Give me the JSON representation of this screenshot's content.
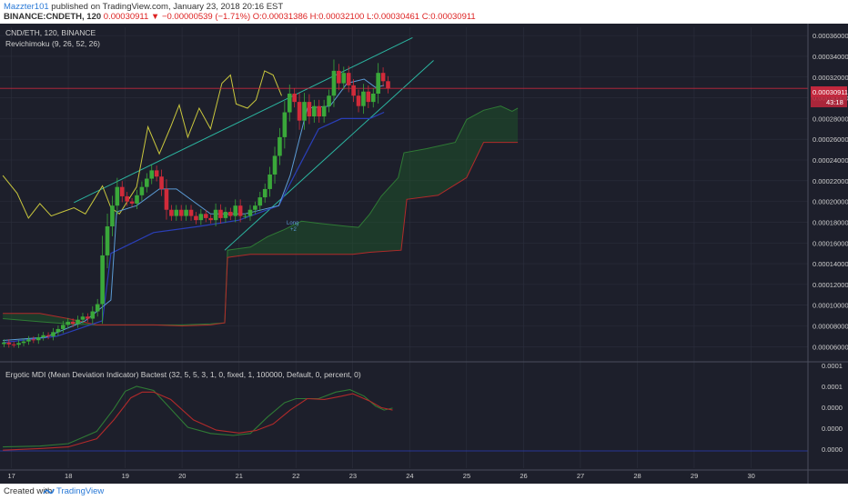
{
  "header": {
    "username": "Mazzter101",
    "published_text": "published on TradingView.com, January 23, 2018 20:16 EST",
    "symbol_prefix": "BINANCE:CNDETH, 120",
    "quote_line": "0.00030911 ▼ −0.00000539 (−1.71%) O:0.00031386 H:0.00032100 L:0.00030461 C:0.00030911"
  },
  "legend": {
    "symbol": "CND/ETH, 120, BINANCE",
    "indicator": "Revichimoku (9, 26, 52, 26)",
    "oscillator": "Ergotic MDI (Mean Deviation Indicator) Bactest (32, 5, 5, 3, 1, 0, fixed, 1, 100000, Default, 0, percent, 0)"
  },
  "price_label": {
    "value": "0.00030911",
    "countdown": "43:18"
  },
  "signals": {
    "long_label": "Long",
    "long_sub": "+2"
  },
  "footer": {
    "created_with": "Created with",
    "brand": "TradingView"
  },
  "colors": {
    "background": "#1d1f2b",
    "grid": "#2c2f3d",
    "up": "#3aa83a",
    "down": "#d12b3a",
    "tenkan": "#5b9bd5",
    "kijun": "#2a3fb8",
    "chikou": "#c9c73d",
    "trend": "#2bb5a0",
    "span_a": "#2f7a35",
    "span_b": "#b22a2a",
    "price_line": "#c2283d",
    "osc_green": "#2f7a35",
    "osc_red": "#b22a2a",
    "osc_zero": "#2a3fb8"
  },
  "chart_data": {
    "type": "candlestick",
    "x_ticks": [
      "17",
      "18",
      "19",
      "20",
      "21",
      "22",
      "23",
      "24",
      "25",
      "26",
      "27",
      "28",
      "29",
      "30"
    ],
    "y_ticks": [
      "0.00036000",
      "0.00034000",
      "0.00032000",
      "0.00030000",
      "0.00028000",
      "0.00026000",
      "0.00024000",
      "0.00022000",
      "0.00020000",
      "0.00018000",
      "0.00016000",
      "0.00014000",
      "0.00012000",
      "0.00010000",
      "0.00008000",
      "0.00006000"
    ],
    "y_range": [
      4.8e-05,
      0.000368
    ],
    "x_range": [
      16.8,
      31
    ],
    "last_price": 0.00030911,
    "candles": [
      {
        "o": 6.25e-05,
        "c": 6.4e-05
      },
      {
        "o": 6.4e-05,
        "c": 6.22e-05
      },
      {
        "o": 6.22e-05,
        "c": 6.18e-05
      },
      {
        "o": 6.18e-05,
        "c": 6.35e-05
      },
      {
        "o": 6.35e-05,
        "c": 6.5e-05
      },
      {
        "o": 6.5e-05,
        "c": 6.7e-05
      },
      {
        "o": 6.7e-05,
        "c": 6.62e-05
      },
      {
        "o": 6.62e-05,
        "c": 6.9e-05
      },
      {
        "o": 6.9e-05,
        "c": 7.1e-05
      },
      {
        "o": 7.1e-05,
        "c": 7e-05
      },
      {
        "o": 7e-05,
        "c": 7.4e-05
      },
      {
        "o": 7.4e-05,
        "c": 7.7e-05
      },
      {
        "o": 7.7e-05,
        "c": 8.1e-05
      },
      {
        "o": 8.1e-05,
        "c": 8.4e-05
      },
      {
        "o": 8.4e-05,
        "c": 8.2e-05
      },
      {
        "o": 8.2e-05,
        "c": 8.6e-05
      },
      {
        "o": 8.6e-05,
        "c": 8.9e-05
      },
      {
        "o": 8.9e-05,
        "c": 8.7e-05
      },
      {
        "o": 8.7e-05,
        "c": 9.4e-05
      },
      {
        "o": 9.4e-05,
        "c": 0.000101
      },
      {
        "o": 0.000101,
        "c": 0.000148
      },
      {
        "o": 0.000148,
        "c": 0.000176
      },
      {
        "o": 0.000176,
        "c": 0.000196
      },
      {
        "o": 0.000196,
        "c": 0.000214
      },
      {
        "o": 0.000214,
        "c": 0.000205
      },
      {
        "o": 0.000205,
        "c": 0.0002
      },
      {
        "o": 0.0002,
        "c": 0.000198
      },
      {
        "o": 0.000198,
        "c": 0.000206
      },
      {
        "o": 0.000206,
        "c": 0.000214
      },
      {
        "o": 0.000214,
        "c": 0.000222
      },
      {
        "o": 0.000222,
        "c": 0.00023
      },
      {
        "o": 0.00023,
        "c": 0.000224
      },
      {
        "o": 0.000224,
        "c": 0.000212
      },
      {
        "o": 0.000212,
        "c": 0.000192
      },
      {
        "o": 0.000192,
        "c": 0.000186
      },
      {
        "o": 0.000186,
        "c": 0.000192
      },
      {
        "o": 0.000192,
        "c": 0.000186
      },
      {
        "o": 0.000186,
        "c": 0.000192
      },
      {
        "o": 0.000192,
        "c": 0.000186
      },
      {
        "o": 0.000186,
        "c": 0.000182
      },
      {
        "o": 0.000182,
        "c": 0.000188
      },
      {
        "o": 0.000188,
        "c": 0.000184
      },
      {
        "o": 0.000184,
        "c": 0.000182
      },
      {
        "o": 0.000182,
        "c": 0.000192
      },
      {
        "o": 0.000192,
        "c": 0.000184
      },
      {
        "o": 0.000184,
        "c": 0.00019
      },
      {
        "o": 0.00019,
        "c": 0.000186
      },
      {
        "o": 0.000186,
        "c": 0.000196
      },
      {
        "o": 0.000196,
        "c": 0.000186
      },
      {
        "o": 0.000186,
        "c": 0.000186
      },
      {
        "o": 0.000186,
        "c": 0.000192
      },
      {
        "o": 0.000192,
        "c": 0.000196
      },
      {
        "o": 0.000196,
        "c": 0.000204
      },
      {
        "o": 0.000204,
        "c": 0.000212
      },
      {
        "o": 0.000212,
        "c": 0.000226
      },
      {
        "o": 0.000226,
        "c": 0.000244
      },
      {
        "o": 0.000244,
        "c": 0.000262
      },
      {
        "o": 0.000262,
        "c": 0.000286
      },
      {
        "o": 0.000286,
        "c": 0.000304
      },
      {
        "o": 0.000304,
        "c": 0.000296
      },
      {
        "o": 0.000296,
        "c": 0.000278
      },
      {
        "o": 0.000278,
        "c": 0.000296
      },
      {
        "o": 0.000296,
        "c": 0.000282
      },
      {
        "o": 0.000282,
        "c": 0.000292
      },
      {
        "o": 0.000292,
        "c": 0.000282
      },
      {
        "o": 0.000282,
        "c": 0.000292
      },
      {
        "o": 0.000292,
        "c": 0.000302
      },
      {
        "o": 0.000302,
        "c": 0.000326
      },
      {
        "o": 0.000326,
        "c": 0.000314
      },
      {
        "o": 0.000314,
        "c": 0.000324
      },
      {
        "o": 0.000324,
        "c": 0.000312
      },
      {
        "o": 0.000312,
        "c": 0.000302
      },
      {
        "o": 0.000302,
        "c": 0.000292
      },
      {
        "o": 0.000292,
        "c": 0.000306
      },
      {
        "o": 0.000306,
        "c": 0.000296
      },
      {
        "o": 0.000296,
        "c": 0.000304
      },
      {
        "o": 0.000304,
        "c": 0.000324
      },
      {
        "o": 0.000324,
        "c": 0.000316
      },
      {
        "o": 0.000316,
        "c": 0.00030911
      }
    ],
    "tenkan": [
      [
        16.85,
        6.6e-05
      ],
      [
        17.6,
        6.9e-05
      ],
      [
        18.3,
        8.5e-05
      ],
      [
        18.75,
        0.000105
      ],
      [
        18.85,
        0.00019
      ],
      [
        19.2,
        0.000196
      ],
      [
        19.6,
        0.000212
      ],
      [
        19.9,
        0.000212
      ],
      [
        20.5,
        0.000188
      ],
      [
        21.1,
        0.000188
      ],
      [
        21.7,
        0.000196
      ],
      [
        21.9,
        0.000225
      ],
      [
        22.2,
        0.00029
      ],
      [
        22.6,
        0.000292
      ],
      [
        22.9,
        0.000314
      ],
      [
        23.2,
        0.000318
      ],
      [
        23.4,
        0.00031
      ],
      [
        23.55,
        0.000312
      ]
    ],
    "kijun": [
      [
        16.85,
        6.4e-05
      ],
      [
        17.8,
        7e-05
      ],
      [
        18.6,
        8.5e-05
      ],
      [
        18.75,
        0.00015
      ],
      [
        19.5,
        0.00017
      ],
      [
        20.3,
        0.000176
      ],
      [
        21.0,
        0.000182
      ],
      [
        21.7,
        0.000196
      ],
      [
        22.0,
        0.000228
      ],
      [
        22.4,
        0.00027
      ],
      [
        22.8,
        0.00028
      ],
      [
        23.3,
        0.00028
      ],
      [
        23.55,
        0.000286
      ]
    ],
    "chikou": [
      [
        16.85,
        0.000225
      ],
      [
        17.1,
        0.000208
      ],
      [
        17.3,
        0.000184
      ],
      [
        17.5,
        0.000198
      ],
      [
        17.7,
        0.000186
      ],
      [
        17.9,
        0.00019
      ],
      [
        18.1,
        0.000194
      ],
      [
        18.3,
        0.000188
      ],
      [
        18.6,
        0.000215
      ],
      [
        18.75,
        0.000194
      ],
      [
        18.9,
        0.000188
      ],
      [
        19.2,
        0.000214
      ],
      [
        19.4,
        0.000272
      ],
      [
        19.6,
        0.000246
      ],
      [
        19.8,
        0.000272
      ],
      [
        19.95,
        0.000293
      ],
      [
        20.1,
        0.000262
      ],
      [
        20.3,
        0.00029
      ],
      [
        20.5,
        0.00027
      ],
      [
        20.7,
        0.000314
      ],
      [
        20.85,
        0.000322
      ],
      [
        20.95,
        0.000294
      ],
      [
        21.15,
        0.00029
      ],
      [
        21.3,
        0.000298
      ],
      [
        21.45,
        0.000326
      ],
      [
        21.6,
        0.000322
      ],
      [
        21.75,
        0.000302
      ]
    ],
    "span_a": [
      [
        16.85,
        8.7e-05
      ],
      [
        17.5,
        8.4e-05
      ],
      [
        18.0,
        8.2e-05
      ],
      [
        18.5,
        8.1e-05
      ],
      [
        19.0,
        8.1e-05
      ],
      [
        19.5,
        8.1e-05
      ],
      [
        20.0,
        8.1e-05
      ],
      [
        20.5,
        8.2e-05
      ],
      [
        20.75,
        8.3e-05
      ],
      [
        20.8,
        0.000153
      ],
      [
        21.2,
        0.000156
      ],
      [
        21.5,
        0.000166
      ],
      [
        21.8,
        0.000173
      ],
      [
        22.1,
        0.000181
      ],
      [
        22.4,
        0.000179
      ],
      [
        22.9,
        0.000176
      ],
      [
        23.1,
        0.000175
      ],
      [
        23.3,
        0.000188
      ],
      [
        23.5,
        0.000205
      ],
      [
        23.8,
        0.000223
      ],
      [
        23.9,
        0.000247
      ],
      [
        24.3,
        0.000251
      ],
      [
        24.8,
        0.000257
      ],
      [
        25.0,
        0.000279
      ],
      [
        25.3,
        0.000288
      ],
      [
        25.6,
        0.000292
      ],
      [
        25.8,
        0.000287
      ],
      [
        25.9,
        0.00029
      ]
    ],
    "span_b": [
      [
        16.85,
        9.2e-05
      ],
      [
        17.5,
        9.2e-05
      ],
      [
        18.0,
        8.7e-05
      ],
      [
        18.5,
        8.1e-05
      ],
      [
        19.0,
        8.1e-05
      ],
      [
        19.5,
        8.1e-05
      ],
      [
        20.0,
        8e-05
      ],
      [
        20.5,
        8.1e-05
      ],
      [
        20.75,
        8.3e-05
      ],
      [
        20.8,
        0.000146
      ],
      [
        21.2,
        0.000149
      ],
      [
        22.0,
        0.000149
      ],
      [
        22.5,
        0.000149
      ],
      [
        23.0,
        0.000149
      ],
      [
        23.3,
        0.000151
      ],
      [
        23.85,
        0.000153
      ],
      [
        23.95,
        0.000202
      ],
      [
        24.5,
        0.000206
      ],
      [
        25.0,
        0.000223
      ],
      [
        25.3,
        0.000257
      ],
      [
        25.9,
        0.000257
      ]
    ],
    "trendlines": [
      {
        "x1": 18.1,
        "y1": 0.000199,
        "x2": 24.05,
        "y2": 0.000358
      },
      {
        "x1": 20.75,
        "y1": 0.000153,
        "x2": 24.42,
        "y2": 0.000336
      }
    ],
    "oscillator": {
      "y_ticks": [
        "0.0001",
        "0.0001",
        "0.0000",
        "0.0000",
        "0.0000"
      ],
      "zero_line": true,
      "green": [
        [
          16.85,
          -0.38
        ],
        [
          17.5,
          -0.36
        ],
        [
          18.0,
          -0.3
        ],
        [
          18.5,
          0.0
        ],
        [
          18.8,
          0.55
        ],
        [
          19.0,
          0.98
        ],
        [
          19.2,
          1.1
        ],
        [
          19.5,
          1.0
        ],
        [
          19.7,
          0.7
        ],
        [
          20.1,
          0.1
        ],
        [
          20.5,
          -0.05
        ],
        [
          20.9,
          -0.1
        ],
        [
          21.2,
          -0.05
        ],
        [
          21.5,
          0.35
        ],
        [
          21.8,
          0.7
        ],
        [
          22.0,
          0.8
        ],
        [
          22.4,
          0.8
        ],
        [
          22.7,
          0.96
        ],
        [
          22.95,
          1.02
        ],
        [
          23.2,
          0.86
        ],
        [
          23.4,
          0.62
        ],
        [
          23.55,
          0.52
        ],
        [
          23.7,
          0.57
        ]
      ],
      "red": [
        [
          16.85,
          -0.46
        ],
        [
          17.5,
          -0.42
        ],
        [
          18.0,
          -0.38
        ],
        [
          18.5,
          -0.18
        ],
        [
          18.8,
          0.28
        ],
        [
          19.1,
          0.82
        ],
        [
          19.3,
          0.96
        ],
        [
          19.5,
          0.96
        ],
        [
          19.8,
          0.78
        ],
        [
          20.2,
          0.28
        ],
        [
          20.6,
          0.03
        ],
        [
          21.0,
          -0.04
        ],
        [
          21.3,
          0.02
        ],
        [
          21.6,
          0.18
        ],
        [
          21.9,
          0.52
        ],
        [
          22.2,
          0.8
        ],
        [
          22.5,
          0.78
        ],
        [
          22.8,
          0.86
        ],
        [
          23.0,
          0.92
        ],
        [
          23.3,
          0.74
        ],
        [
          23.5,
          0.58
        ],
        [
          23.7,
          0.52
        ]
      ]
    }
  }
}
